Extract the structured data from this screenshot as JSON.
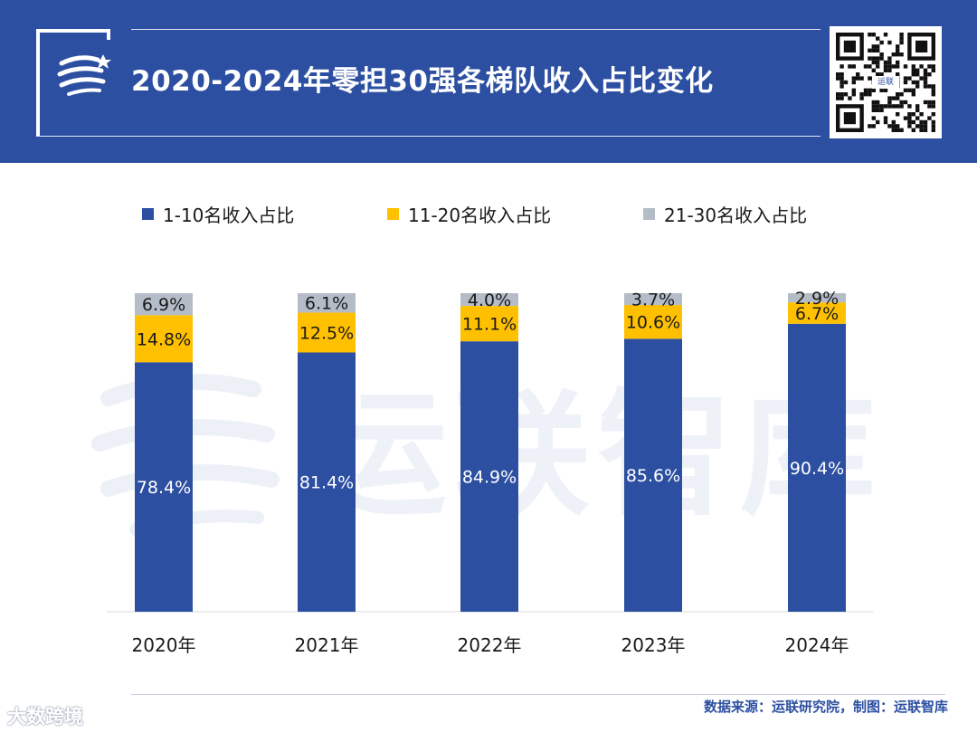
{
  "header": {
    "title": "2020-2024年零担30强各梯队收入占比变化",
    "qr_badge": "运联"
  },
  "colors": {
    "header_bg": "#2c4fa1",
    "tier1": "#2c4fa1",
    "tier2": "#ffc000",
    "tier3": "#b4bcc8"
  },
  "watermark": "运联智库",
  "chart_data": {
    "type": "bar",
    "stacked": true,
    "categories": [
      "2020年",
      "2021年",
      "2022年",
      "2023年",
      "2024年"
    ],
    "series": [
      {
        "name": "1-10名收入占比",
        "values": [
          78.4,
          81.4,
          84.9,
          85.6,
          90.4
        ],
        "labels": [
          "78.4%",
          "81.4%",
          "84.9%",
          "85.6%",
          "90.4%"
        ],
        "color": "#2c4fa1"
      },
      {
        "name": "11-20名收入占比",
        "values": [
          14.8,
          12.5,
          11.1,
          10.6,
          6.7
        ],
        "labels": [
          "14.8%",
          "12.5%",
          "11.1%",
          "10.6%",
          "6.7%"
        ],
        "color": "#ffc000"
      },
      {
        "name": "21-30名收入占比",
        "values": [
          6.9,
          6.1,
          4.0,
          3.7,
          2.9
        ],
        "labels": [
          "6.9%",
          "6.1%",
          "4.0%",
          "3.7%",
          "2.9%"
        ],
        "color": "#b4bcc8"
      }
    ],
    "ylim": [
      0,
      100
    ],
    "grid": false,
    "legend": "top"
  },
  "footer": {
    "source": "数据来源：运联研究院，制图：运联智库",
    "corner_mark": "大数跨境"
  }
}
